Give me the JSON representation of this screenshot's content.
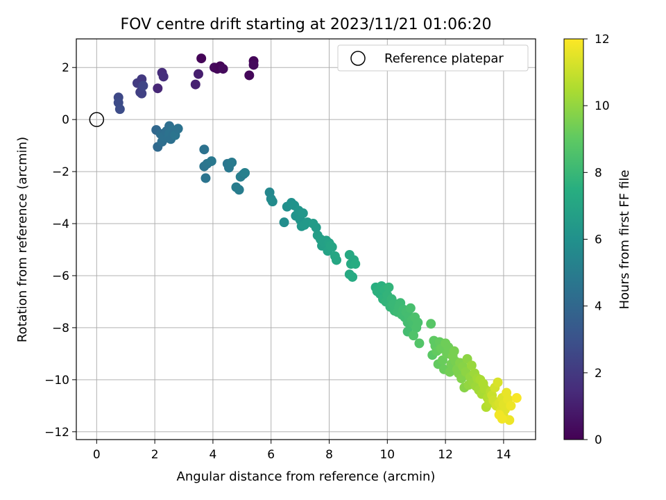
{
  "chart_data": {
    "type": "scatter",
    "title": "FOV centre drift starting at 2023/11/21 01:06:20",
    "xlabel": "Angular distance from reference (arcmin)",
    "ylabel": "Rotation from reference (arcmin)",
    "xlim": [
      -0.7,
      15.1
    ],
    "ylim": [
      -12.3,
      3.1
    ],
    "xticks": [
      0,
      2,
      4,
      6,
      8,
      10,
      12,
      14
    ],
    "yticks": [
      2,
      0,
      -2,
      -4,
      -6,
      -8,
      -10,
      -12
    ],
    "xtick_labels": [
      "0",
      "2",
      "4",
      "6",
      "8",
      "10",
      "12",
      "14"
    ],
    "ytick_labels": [
      "2",
      "0",
      "−2",
      "−4",
      "−6",
      "−8",
      "−10",
      "−12"
    ],
    "grid": true,
    "colormap": "viridis",
    "colorbar": {
      "label": "Hours from first FF file",
      "range": [
        0,
        12
      ],
      "ticks": [
        0,
        2,
        4,
        6,
        8,
        10,
        12
      ],
      "tick_labels": [
        "0",
        "2",
        "4",
        "6",
        "8",
        "10",
        "12"
      ]
    },
    "reference": {
      "x": 0,
      "y": 0
    },
    "legend": {
      "label": "Reference platepar",
      "placement": "top-right"
    },
    "points": [
      [
        3.6,
        2.35,
        0.1
      ],
      [
        4.05,
        2.0,
        0.3
      ],
      [
        4.15,
        1.95,
        0.2
      ],
      [
        4.25,
        2.05,
        0.1
      ],
      [
        4.35,
        1.95,
        0.3
      ],
      [
        5.25,
        1.7,
        0.2
      ],
      [
        5.4,
        2.25,
        0.15
      ],
      [
        5.4,
        2.1,
        0.3
      ],
      [
        3.4,
        1.35,
        1.1
      ],
      [
        3.5,
        1.75,
        1.0
      ],
      [
        2.1,
        1.2,
        1.3
      ],
      [
        2.25,
        1.8,
        1.5
      ],
      [
        2.3,
        1.65,
        1.6
      ],
      [
        1.4,
        1.4,
        2.1
      ],
      [
        1.5,
        1.05,
        2.2
      ],
      [
        1.55,
        1.55,
        2.0
      ],
      [
        1.55,
        1.0,
        2.3
      ],
      [
        1.6,
        1.3,
        2.5
      ],
      [
        0.75,
        0.85,
        2.6
      ],
      [
        0.75,
        0.65,
        2.7
      ],
      [
        0.8,
        0.4,
        2.8
      ],
      [
        2.05,
        -0.4,
        4.0
      ],
      [
        2.1,
        -1.05,
        4.1
      ],
      [
        2.2,
        -0.55,
        4.2
      ],
      [
        2.25,
        -0.85,
        4.3
      ],
      [
        2.3,
        -0.65,
        4.4
      ],
      [
        2.4,
        -0.45,
        4.3
      ],
      [
        2.45,
        -0.7,
        4.4
      ],
      [
        2.5,
        -0.25,
        4.3
      ],
      [
        2.5,
        -0.55,
        4.5
      ],
      [
        2.55,
        -0.75,
        4.4
      ],
      [
        2.6,
        -0.4,
        4.5
      ],
      [
        2.65,
        -0.55,
        4.4
      ],
      [
        2.7,
        -0.6,
        4.6
      ],
      [
        2.8,
        -0.35,
        4.5
      ],
      [
        3.7,
        -1.15,
        4.5
      ],
      [
        3.7,
        -1.8,
        4.6
      ],
      [
        3.75,
        -2.25,
        4.6
      ],
      [
        3.8,
        -1.7,
        4.7
      ],
      [
        3.95,
        -1.6,
        4.8
      ],
      [
        4.5,
        -1.7,
        4.7
      ],
      [
        4.55,
        -1.85,
        4.8
      ],
      [
        4.65,
        -1.65,
        4.9
      ],
      [
        4.8,
        -2.6,
        5.0
      ],
      [
        4.9,
        -2.7,
        5.0
      ],
      [
        4.95,
        -2.2,
        5.1
      ],
      [
        5.05,
        -2.1,
        5.0
      ],
      [
        5.1,
        -2.05,
        5.2
      ],
      [
        5.95,
        -2.8,
        5.5
      ],
      [
        6.0,
        -3.05,
        5.6
      ],
      [
        6.05,
        -3.15,
        5.7
      ],
      [
        6.45,
        -3.95,
        5.8
      ],
      [
        6.55,
        -3.35,
        5.9
      ],
      [
        6.7,
        -3.2,
        6.0
      ],
      [
        6.8,
        -3.3,
        6.1
      ],
      [
        6.85,
        -3.7,
        6.1
      ],
      [
        6.95,
        -3.5,
        6.2
      ],
      [
        7.0,
        -3.85,
        6.2
      ],
      [
        7.05,
        -4.1,
        6.3
      ],
      [
        7.1,
        -3.6,
        6.3
      ],
      [
        7.15,
        -4.05,
        6.4
      ],
      [
        7.25,
        -3.95,
        6.4
      ],
      [
        7.45,
        -4.0,
        6.5
      ],
      [
        7.55,
        -4.15,
        6.5
      ],
      [
        7.6,
        -4.45,
        6.6
      ],
      [
        7.7,
        -4.6,
        6.7
      ],
      [
        7.75,
        -4.85,
        6.7
      ],
      [
        7.8,
        -4.7,
        6.8
      ],
      [
        7.9,
        -4.65,
        6.8
      ],
      [
        7.95,
        -5.05,
        6.9
      ],
      [
        8.0,
        -4.75,
        6.9
      ],
      [
        8.05,
        -4.85,
        7.0
      ],
      [
        8.1,
        -4.9,
        7.0
      ],
      [
        8.2,
        -5.25,
        7.1
      ],
      [
        8.25,
        -5.4,
        7.1
      ],
      [
        8.7,
        -5.2,
        7.2
      ],
      [
        8.7,
        -5.95,
        7.2
      ],
      [
        8.8,
        -6.05,
        7.3
      ],
      [
        8.75,
        -5.55,
        7.3
      ],
      [
        8.85,
        -5.4,
        7.2
      ],
      [
        8.9,
        -5.55,
        7.4
      ],
      [
        9.6,
        -6.45,
        7.5
      ],
      [
        9.65,
        -6.6,
        7.6
      ],
      [
        9.75,
        -6.7,
        7.6
      ],
      [
        9.8,
        -6.4,
        7.6
      ],
      [
        9.85,
        -6.9,
        7.7
      ],
      [
        9.9,
        -6.55,
        7.7
      ],
      [
        9.95,
        -7.0,
        7.8
      ],
      [
        10.0,
        -6.75,
        7.8
      ],
      [
        10.05,
        -6.45,
        7.8
      ],
      [
        10.1,
        -7.2,
        7.9
      ],
      [
        10.15,
        -6.9,
        7.9
      ],
      [
        10.2,
        -7.1,
        8.0
      ],
      [
        10.25,
        -7.35,
        8.0
      ],
      [
        10.3,
        -7.1,
        8.0
      ],
      [
        10.35,
        -7.4,
        8.1
      ],
      [
        10.4,
        -7.2,
        8.1
      ],
      [
        10.45,
        -7.05,
        8.1
      ],
      [
        10.5,
        -7.5,
        8.2
      ],
      [
        10.55,
        -7.3,
        8.2
      ],
      [
        10.6,
        -7.6,
        8.2
      ],
      [
        10.65,
        -7.4,
        8.3
      ],
      [
        10.7,
        -7.8,
        8.3
      ],
      [
        10.75,
        -7.55,
        8.3
      ],
      [
        10.8,
        -7.25,
        8.4
      ],
      [
        10.85,
        -7.7,
        8.4
      ],
      [
        10.9,
        -7.9,
        8.4
      ],
      [
        10.95,
        -7.6,
        8.5
      ],
      [
        11.0,
        -8.0,
        8.5
      ],
      [
        11.05,
        -7.8,
        8.5
      ],
      [
        10.7,
        -8.15,
        8.3
      ],
      [
        10.9,
        -8.3,
        8.6
      ],
      [
        11.1,
        -8.6,
        8.7
      ],
      [
        11.5,
        -7.85,
        8.8
      ],
      [
        11.55,
        -9.05,
        8.9
      ],
      [
        11.6,
        -8.5,
        9.0
      ],
      [
        11.65,
        -8.7,
        9.0
      ],
      [
        11.7,
        -8.9,
        9.1
      ],
      [
        11.75,
        -9.4,
        9.1
      ],
      [
        11.8,
        -8.55,
        9.1
      ],
      [
        11.85,
        -8.8,
        9.2
      ],
      [
        11.9,
        -9.25,
        9.2
      ],
      [
        11.95,
        -9.6,
        9.2
      ],
      [
        12.0,
        -8.6,
        9.3
      ],
      [
        12.05,
        -9.0,
        9.3
      ],
      [
        12.1,
        -8.75,
        9.3
      ],
      [
        12.15,
        -9.7,
        9.4
      ],
      [
        12.2,
        -9.4,
        9.4
      ],
      [
        12.25,
        -9.1,
        9.5
      ],
      [
        12.3,
        -8.9,
        9.5
      ],
      [
        12.35,
        -9.3,
        9.5
      ],
      [
        12.4,
        -9.6,
        9.6
      ],
      [
        12.45,
        -9.75,
        9.6
      ],
      [
        12.5,
        -9.35,
        9.7
      ],
      [
        12.55,
        -9.95,
        9.7
      ],
      [
        12.6,
        -9.5,
        9.8
      ],
      [
        12.65,
        -10.3,
        9.8
      ],
      [
        12.7,
        -9.7,
        9.9
      ],
      [
        12.75,
        -9.2,
        9.9
      ],
      [
        12.8,
        -10.2,
        10.0
      ],
      [
        12.85,
        -9.9,
        10.0
      ],
      [
        12.9,
        -9.45,
        10.1
      ],
      [
        12.95,
        -10.1,
        10.1
      ],
      [
        13.0,
        -9.75,
        10.2
      ],
      [
        13.05,
        -10.25,
        10.2
      ],
      [
        13.1,
        -9.95,
        10.3
      ],
      [
        13.15,
        -10.4,
        10.3
      ],
      [
        13.2,
        -10.0,
        10.4
      ],
      [
        13.25,
        -10.55,
        10.4
      ],
      [
        13.3,
        -10.15,
        10.5
      ],
      [
        13.35,
        -10.35,
        10.5
      ],
      [
        13.4,
        -11.05,
        10.6
      ],
      [
        13.45,
        -10.7,
        10.6
      ],
      [
        13.5,
        -10.9,
        10.7
      ],
      [
        13.55,
        -10.45,
        10.7
      ],
      [
        13.6,
        -10.6,
        11.0
      ],
      [
        13.65,
        -10.8,
        11.1
      ],
      [
        13.7,
        -10.3,
        11.2
      ],
      [
        13.75,
        -11.0,
        11.2
      ],
      [
        13.8,
        -10.1,
        11.3
      ],
      [
        13.85,
        -10.9,
        11.3
      ],
      [
        13.9,
        -11.2,
        11.4
      ],
      [
        13.95,
        -10.7,
        11.4
      ],
      [
        14.0,
        -11.4,
        11.5
      ],
      [
        14.0,
        -10.95,
        11.5
      ],
      [
        14.05,
        -11.15,
        11.5
      ],
      [
        14.1,
        -10.5,
        11.6
      ],
      [
        14.15,
        -10.75,
        11.6
      ],
      [
        14.2,
        -11.55,
        11.7
      ],
      [
        14.25,
        -11.0,
        11.7
      ],
      [
        13.85,
        -11.35,
        11.8
      ],
      [
        13.95,
        -11.5,
        11.8
      ],
      [
        14.45,
        -10.7,
        11.9
      ]
    ]
  }
}
